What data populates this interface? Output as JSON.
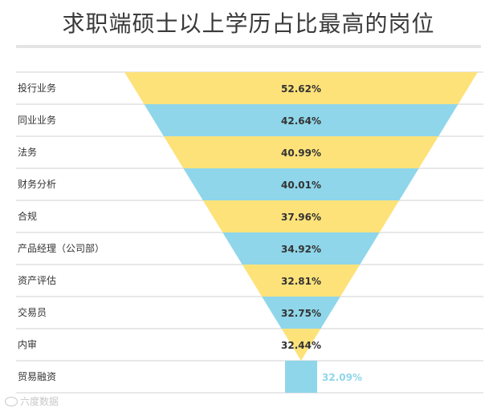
{
  "chart_data": {
    "type": "funnel",
    "title": "求职端硕士以上学历占比最高的岗位",
    "categories": [
      "投行业务",
      "同业业务",
      "法务",
      "财务分析",
      "合规",
      "产品经理（公司部）",
      "资产评估",
      "交易员",
      "内审",
      "贸易融资"
    ],
    "values": [
      52.62,
      42.64,
      40.99,
      40.01,
      37.96,
      34.92,
      32.81,
      32.75,
      32.44,
      32.09
    ],
    "labels": [
      "52.62%",
      "42.64%",
      "40.99%",
      "40.01%",
      "37.96%",
      "34.92%",
      "32.81%",
      "32.75%",
      "32.44%",
      "32.09%"
    ],
    "colors": [
      "#fde27a",
      "#8fd6ea"
    ],
    "label_color": "#333333",
    "outside_label_color": "#8fd6ea",
    "grid_color": "#d0d0d0"
  },
  "watermark": {
    "icon": "weibo-icon",
    "text": "六度数据"
  }
}
